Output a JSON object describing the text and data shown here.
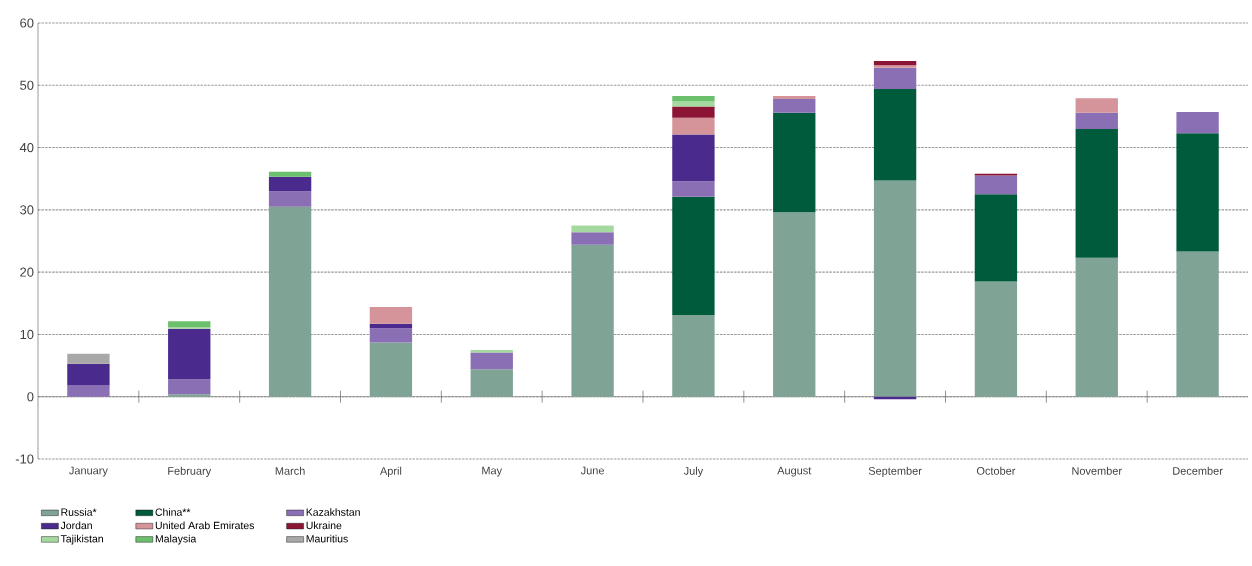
{
  "chart_data": {
    "type": "bar",
    "stacked": true,
    "categories": [
      "January",
      "February",
      "March",
      "April",
      "May",
      "June",
      "July",
      "August",
      "September",
      "October",
      "November",
      "December"
    ],
    "series": [
      {
        "name": "Russia*",
        "color": "#7fa496",
        "values": [
          0,
          0.4,
          30.5,
          8.7,
          4.4,
          24.4,
          13.1,
          29.6,
          34.7,
          18.5,
          22.3,
          23.3
        ]
      },
      {
        "name": "China**",
        "color": "#005a3c",
        "values": [
          0,
          0,
          0,
          0,
          0,
          0,
          19.0,
          16.0,
          14.7,
          14.0,
          20.7,
          19.0
        ]
      },
      {
        "name": "Kazakhstan",
        "color": "#8a6fb5",
        "values": [
          1.8,
          2.4,
          2.5,
          2.3,
          2.7,
          2.0,
          2.5,
          2.2,
          3.4,
          3.0,
          2.6,
          3.4
        ]
      },
      {
        "name": "Jordan",
        "color": "#4a2a8c",
        "values": [
          3.5,
          8.1,
          2.3,
          0.7,
          0,
          0,
          7.5,
          0,
          -0.4,
          0,
          0,
          0
        ]
      },
      {
        "name": "United Arab Emirates",
        "color": "#d4949a",
        "values": [
          0,
          0,
          0,
          2.7,
          0,
          0,
          2.7,
          0.5,
          0.4,
          0,
          2.3,
          0
        ]
      },
      {
        "name": "Ukraine",
        "color": "#8c1535",
        "values": [
          0,
          0,
          0,
          0,
          0,
          0,
          1.8,
          0,
          0.7,
          0.3,
          0,
          0
        ]
      },
      {
        "name": "Tajikistan",
        "color": "#a6d9a0",
        "values": [
          0,
          0.3,
          0,
          0,
          0.4,
          1.1,
          0.8,
          0,
          0,
          0,
          0,
          0
        ]
      },
      {
        "name": "Malaysia",
        "color": "#6cbf6c",
        "values": [
          0,
          0.9,
          0.8,
          0,
          0,
          0,
          0.9,
          0,
          0,
          0,
          0,
          0
        ]
      },
      {
        "name": "Mauritius",
        "color": "#a8a8a8",
        "values": [
          1.6,
          0,
          0,
          0,
          0,
          0,
          0,
          0,
          0,
          0,
          0,
          0
        ]
      }
    ],
    "ylim": [
      -10,
      60
    ],
    "yticks": [
      -10,
      0,
      10,
      20,
      30,
      40,
      50,
      60
    ],
    "grid": "y",
    "legend": "bottom"
  }
}
